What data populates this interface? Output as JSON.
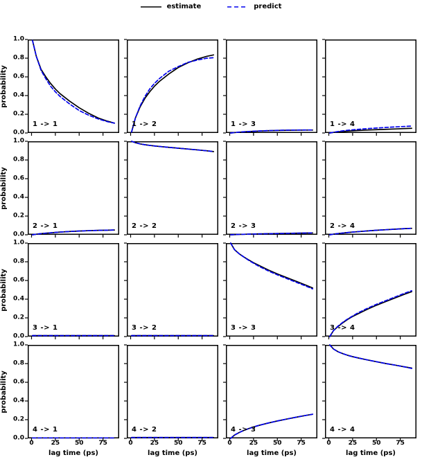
{
  "legend": {
    "estimate_label": "estimate",
    "predict_label": "predict"
  },
  "colors": {
    "estimate": "#000000",
    "predict": "#0000ee",
    "axis": "#000000"
  },
  "axes": {
    "xlabel": "lag time (ps)",
    "ylabel": "probability",
    "x_ticks": [
      "0",
      "25",
      "50",
      "75"
    ],
    "x_tick_values": [
      0,
      25,
      50,
      75
    ],
    "y_ticks": [
      "0.0",
      "0.2",
      "0.4",
      "0.6",
      "0.8",
      "1.0"
    ],
    "y_tick_values": [
      0.0,
      0.2,
      0.4,
      0.6,
      0.8,
      1.0
    ],
    "xlim": [
      -4,
      92
    ],
    "ylim": [
      0,
      1
    ],
    "grid": "off",
    "legend_position": "top-center"
  },
  "chart_data": {
    "type": "line",
    "title": "",
    "layout": "4x4 grid of transition-probability subplots (Chapman-Kolmogorov test)",
    "x": [
      1,
      5,
      10,
      15,
      20,
      25,
      30,
      40,
      50,
      60,
      70,
      80,
      87
    ],
    "subplots": [
      {
        "label": "1 -> 1",
        "estimate": [
          0.99,
          0.82,
          0.68,
          0.6,
          0.53,
          0.47,
          0.42,
          0.34,
          0.27,
          0.21,
          0.16,
          0.125,
          0.105
        ],
        "predict": [
          0.99,
          0.82,
          0.67,
          0.58,
          0.5,
          0.44,
          0.39,
          0.31,
          0.24,
          0.19,
          0.15,
          0.12,
          0.105
        ]
      },
      {
        "label": "1 -> 2",
        "estimate": [
          0.01,
          0.16,
          0.28,
          0.37,
          0.44,
          0.5,
          0.55,
          0.63,
          0.7,
          0.75,
          0.79,
          0.82,
          0.835
        ],
        "predict": [
          0.01,
          0.16,
          0.29,
          0.39,
          0.47,
          0.53,
          0.58,
          0.66,
          0.71,
          0.755,
          0.78,
          0.8,
          0.805
        ]
      },
      {
        "label": "1 -> 3",
        "estimate": [
          0.0,
          0.004,
          0.008,
          0.012,
          0.015,
          0.018,
          0.02,
          0.024,
          0.027,
          0.029,
          0.03,
          0.031,
          0.031
        ],
        "predict": [
          0.0,
          0.004,
          0.009,
          0.013,
          0.016,
          0.019,
          0.021,
          0.025,
          0.028,
          0.03,
          0.031,
          0.032,
          0.032
        ]
      },
      {
        "label": "1 -> 4",
        "estimate": [
          0.0,
          0.006,
          0.012,
          0.016,
          0.02,
          0.023,
          0.026,
          0.031,
          0.035,
          0.039,
          0.043,
          0.047,
          0.05
        ],
        "predict": [
          0.0,
          0.008,
          0.016,
          0.023,
          0.029,
          0.034,
          0.038,
          0.046,
          0.053,
          0.059,
          0.065,
          0.07,
          0.074
        ]
      },
      {
        "label": "2 -> 1",
        "estimate": [
          0.0,
          0.006,
          0.012,
          0.017,
          0.021,
          0.025,
          0.029,
          0.035,
          0.04,
          0.044,
          0.047,
          0.049,
          0.051
        ],
        "predict": [
          0.0,
          0.006,
          0.012,
          0.017,
          0.021,
          0.025,
          0.029,
          0.035,
          0.04,
          0.044,
          0.047,
          0.049,
          0.051
        ]
      },
      {
        "label": "2 -> 2",
        "estimate": [
          1.0,
          0.985,
          0.972,
          0.963,
          0.956,
          0.95,
          0.945,
          0.935,
          0.926,
          0.917,
          0.908,
          0.898,
          0.89
        ],
        "predict": [
          1.0,
          0.985,
          0.972,
          0.963,
          0.956,
          0.95,
          0.945,
          0.935,
          0.926,
          0.917,
          0.908,
          0.898,
          0.89
        ]
      },
      {
        "label": "2 -> 3",
        "estimate": [
          0.0,
          0.002,
          0.004,
          0.005,
          0.007,
          0.008,
          0.009,
          0.011,
          0.013,
          0.015,
          0.017,
          0.019,
          0.02
        ],
        "predict": [
          0.0,
          0.002,
          0.004,
          0.005,
          0.007,
          0.008,
          0.009,
          0.011,
          0.013,
          0.015,
          0.017,
          0.019,
          0.02
        ]
      },
      {
        "label": "2 -> 4",
        "estimate": [
          0.0,
          0.007,
          0.013,
          0.019,
          0.024,
          0.029,
          0.033,
          0.041,
          0.048,
          0.054,
          0.06,
          0.066,
          0.069
        ],
        "predict": [
          0.0,
          0.007,
          0.013,
          0.019,
          0.024,
          0.029,
          0.033,
          0.041,
          0.048,
          0.054,
          0.06,
          0.066,
          0.069
        ]
      },
      {
        "label": "3 -> 1",
        "estimate": [
          0.01,
          0.01,
          0.01,
          0.01,
          0.01,
          0.01,
          0.01,
          0.01,
          0.01,
          0.01,
          0.01,
          0.01,
          0.01
        ],
        "predict": [
          0.01,
          0.01,
          0.01,
          0.01,
          0.01,
          0.01,
          0.01,
          0.01,
          0.01,
          0.01,
          0.01,
          0.01,
          0.01
        ]
      },
      {
        "label": "3 -> 2",
        "estimate": [
          0.01,
          0.01,
          0.01,
          0.01,
          0.01,
          0.01,
          0.01,
          0.01,
          0.01,
          0.01,
          0.01,
          0.01,
          0.01
        ],
        "predict": [
          0.01,
          0.01,
          0.01,
          0.01,
          0.01,
          0.01,
          0.01,
          0.01,
          0.01,
          0.01,
          0.01,
          0.01,
          0.01
        ]
      },
      {
        "label": "3 -> 3",
        "estimate": [
          1.0,
          0.93,
          0.885,
          0.85,
          0.82,
          0.79,
          0.765,
          0.715,
          0.67,
          0.63,
          0.59,
          0.55,
          0.52
        ],
        "predict": [
          1.0,
          0.93,
          0.885,
          0.85,
          0.815,
          0.785,
          0.755,
          0.705,
          0.66,
          0.62,
          0.58,
          0.54,
          0.51
        ]
      },
      {
        "label": "3 -> 4",
        "estimate": [
          0.0,
          0.065,
          0.11,
          0.15,
          0.185,
          0.215,
          0.24,
          0.29,
          0.335,
          0.375,
          0.415,
          0.455,
          0.48
        ],
        "predict": [
          0.0,
          0.065,
          0.115,
          0.155,
          0.19,
          0.22,
          0.25,
          0.3,
          0.345,
          0.385,
          0.425,
          0.465,
          0.49
        ]
      },
      {
        "label": "4 -> 1",
        "estimate": [
          0.005,
          0.005,
          0.005,
          0.005,
          0.005,
          0.005,
          0.005,
          0.005,
          0.005,
          0.005,
          0.005,
          0.005,
          0.005
        ],
        "predict": [
          0.005,
          0.005,
          0.005,
          0.005,
          0.005,
          0.005,
          0.005,
          0.005,
          0.005,
          0.005,
          0.005,
          0.005,
          0.005
        ]
      },
      {
        "label": "4 -> 2",
        "estimate": [
          0.009,
          0.009,
          0.009,
          0.009,
          0.009,
          0.009,
          0.009,
          0.009,
          0.009,
          0.009,
          0.009,
          0.009,
          0.009
        ],
        "predict": [
          0.009,
          0.009,
          0.009,
          0.009,
          0.009,
          0.009,
          0.009,
          0.009,
          0.009,
          0.009,
          0.009,
          0.009,
          0.009
        ]
      },
      {
        "label": "4 -> 3",
        "estimate": [
          0.0,
          0.035,
          0.063,
          0.086,
          0.105,
          0.122,
          0.137,
          0.163,
          0.186,
          0.207,
          0.227,
          0.246,
          0.258
        ],
        "predict": [
          0.0,
          0.035,
          0.063,
          0.086,
          0.105,
          0.122,
          0.137,
          0.163,
          0.186,
          0.207,
          0.227,
          0.246,
          0.258
        ]
      },
      {
        "label": "4 -> 4",
        "estimate": [
          1.0,
          0.955,
          0.925,
          0.905,
          0.888,
          0.874,
          0.862,
          0.84,
          0.82,
          0.8,
          0.783,
          0.764,
          0.752
        ],
        "predict": [
          1.0,
          0.955,
          0.925,
          0.905,
          0.888,
          0.874,
          0.862,
          0.84,
          0.82,
          0.8,
          0.783,
          0.764,
          0.748
        ]
      }
    ]
  }
}
